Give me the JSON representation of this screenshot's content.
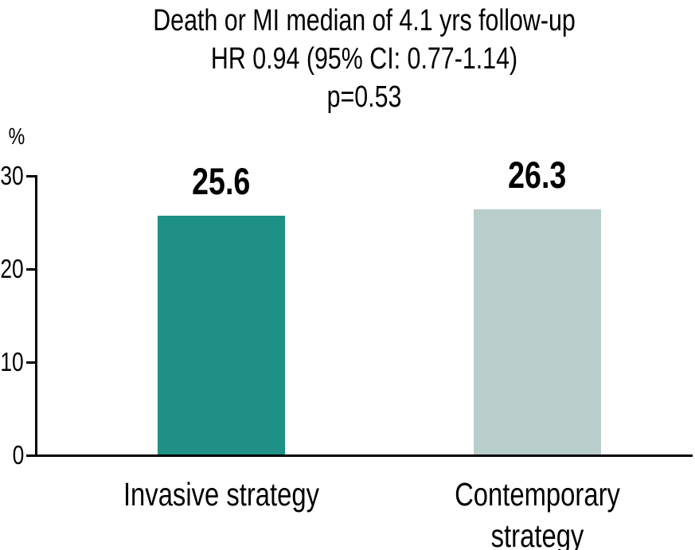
{
  "chart_data": {
    "type": "bar",
    "title_lines": [
      "Death or MI median of 4.1 yrs follow-up",
      "HR 0.94 (95% CI: 0.77-1.14)",
      "p=0.53"
    ],
    "ylabel": "%",
    "ylim": [
      0,
      30
    ],
    "yticks": [
      0,
      10,
      20,
      30
    ],
    "ytick_labels": [
      "0",
      "10",
      "20",
      "30"
    ],
    "categories": [
      "Invasive strategy",
      "Contemporary strategy"
    ],
    "values": [
      25.6,
      26.3
    ],
    "value_labels": [
      "25.6",
      "26.3"
    ],
    "bar_colors": [
      "#1e9086",
      "#b9cecb"
    ],
    "axis_color": "#000000",
    "grid": false,
    "legend": "none",
    "xlabel": ""
  }
}
